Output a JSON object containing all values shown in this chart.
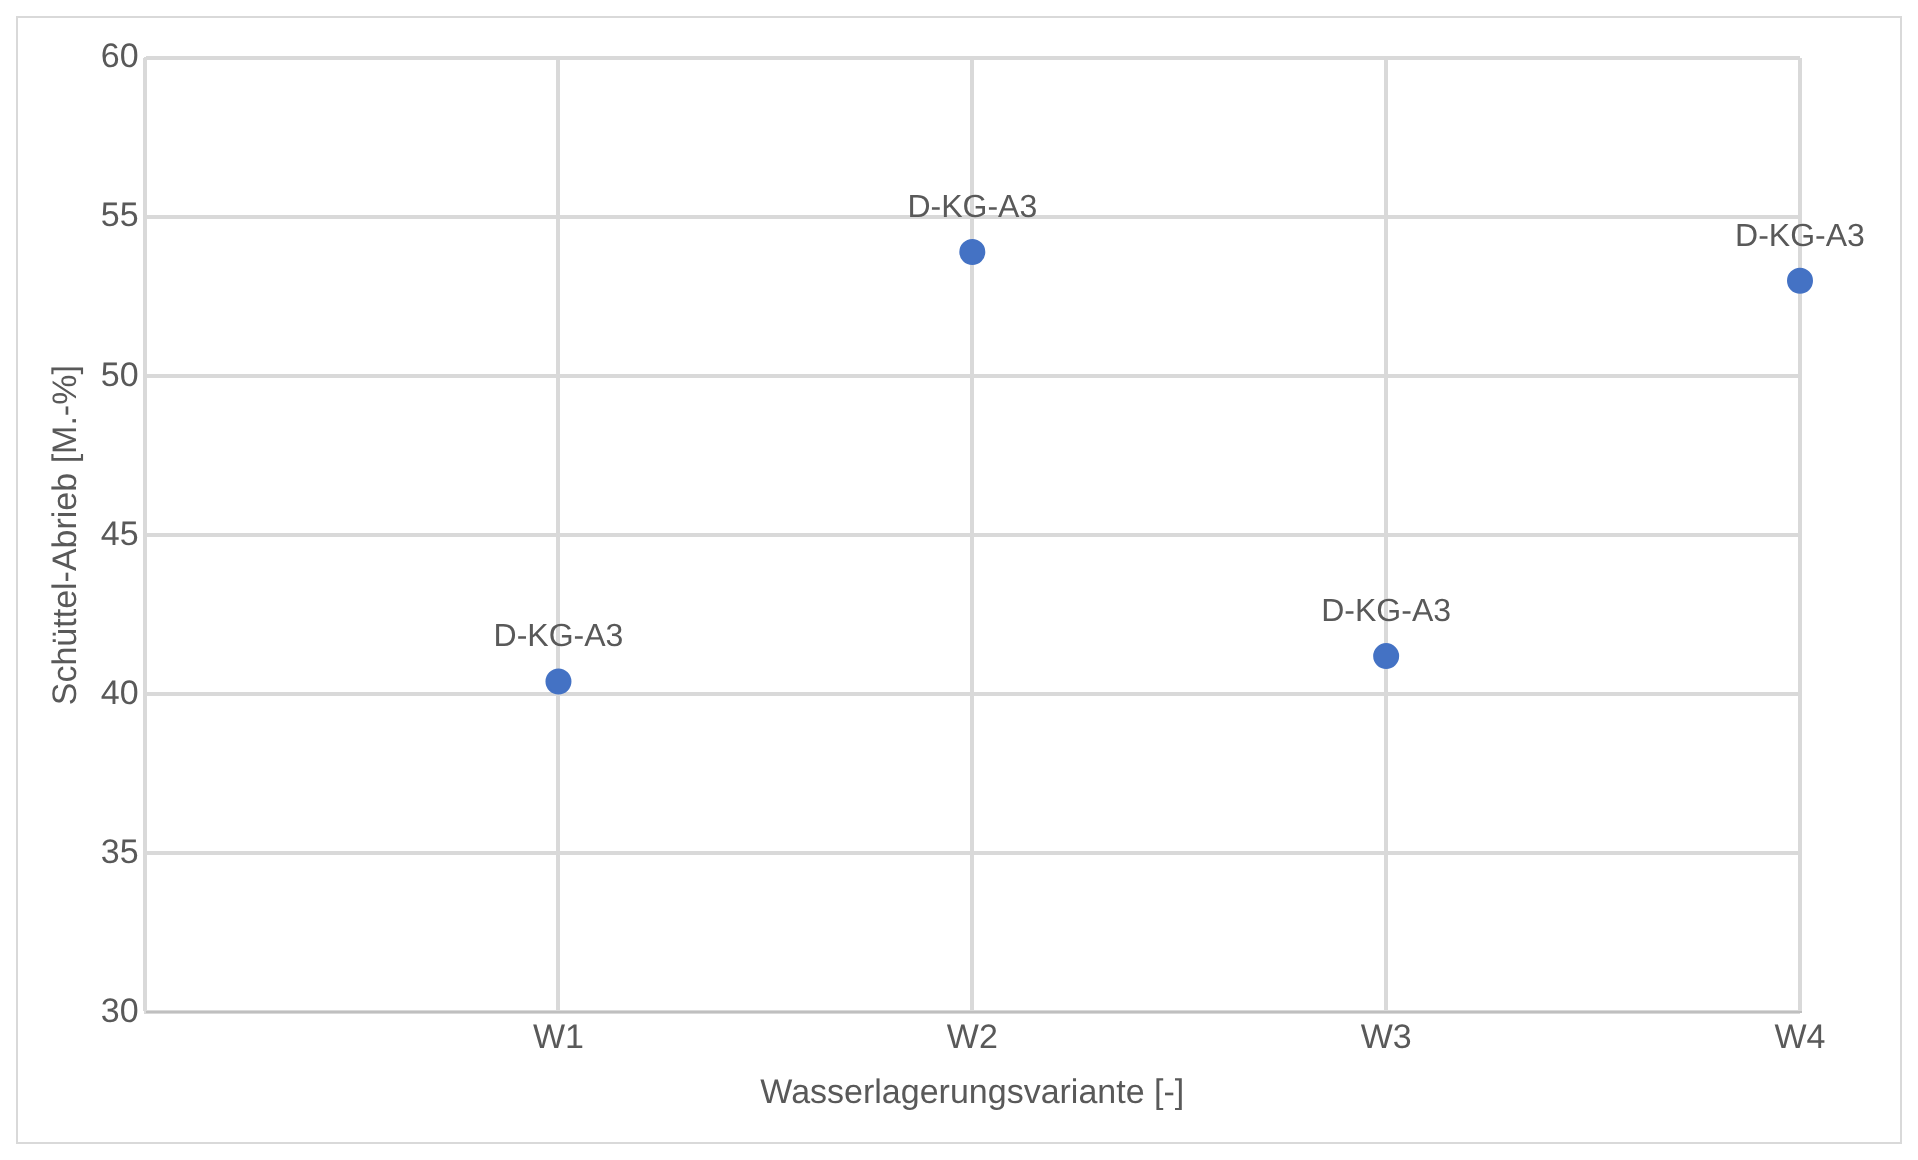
{
  "chart_data": {
    "type": "scatter",
    "xlabel": "Wasserlagerungsvariante [-]",
    "ylabel": "Schüttel-Abrieb [M.-%]",
    "categories": [
      null,
      "W1",
      "W2",
      "W3",
      "W4"
    ],
    "series": [
      {
        "color": "#4472c4",
        "values": [
          null,
          40.4,
          53.9,
          41.2,
          53.0
        ]
      }
    ],
    "ylim": [
      30,
      60
    ],
    "yticks": [
      30,
      35,
      40,
      45,
      50,
      55,
      60
    ],
    "grid": true,
    "legend": false,
    "marker": "circle",
    "annotations": [
      {
        "text": "D-KG-A3",
        "x": "W1",
        "y": 40.4
      },
      {
        "text": "D-KG-A3",
        "x": "W2",
        "y": 53.9
      },
      {
        "text": "D-KG-A3",
        "x": "W3",
        "y": 41.2
      },
      {
        "text": "D-KG-A3",
        "x": "W4",
        "y": 53.0
      }
    ]
  }
}
